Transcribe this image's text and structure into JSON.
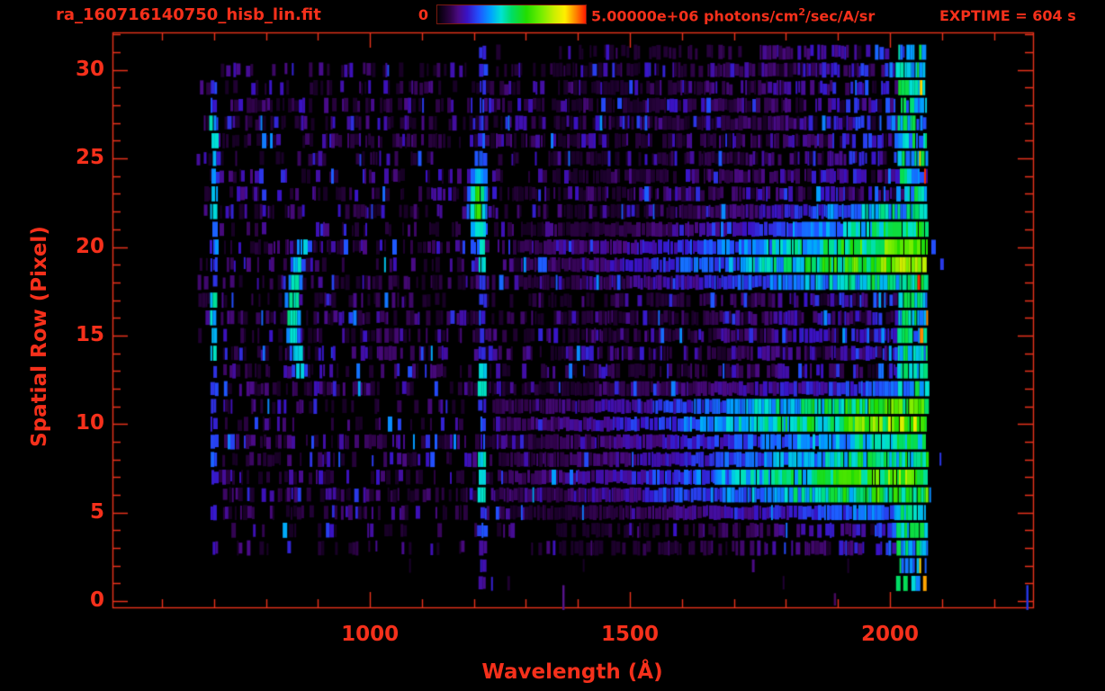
{
  "header": {
    "title": "ra_160716140750_hisb_lin.fit",
    "exptime": "EXPTIME = 604 s",
    "colorbar_min": "0",
    "colorbar_max_prefix": "5.00000e+06 photons/cm",
    "colorbar_max_sup": "2",
    "colorbar_max_suffix": "/sec/A/sr"
  },
  "accent_color": "#f5301b",
  "chart_data": {
    "type": "heatmap",
    "title": "ra_160716140750_hisb_lin.fit",
    "xlabel": "Wavelength (Å)",
    "ylabel": "Spatial Row (Pixel)",
    "x_ticks": [
      1000,
      1500,
      2000
    ],
    "x_minor_tick_step_A": 100,
    "x_axis_range": [
      505,
      2275
    ],
    "y_ticks": [
      0,
      5,
      10,
      15,
      20,
      25,
      30
    ],
    "y_minor_tick_step": 1,
    "y_axis_range": [
      -0.35,
      32.12
    ],
    "grid": false,
    "exptime_s": 604,
    "colorbar": {
      "min": 0,
      "max": 5000000,
      "max_label": "5.00000e+06",
      "units": "photons/cm^2/sec/A/sr",
      "stops": [
        [
          0,
          "#000000"
        ],
        [
          0.04,
          "#140020"
        ],
        [
          0.09,
          "#2e0347"
        ],
        [
          0.14,
          "#4a0a82"
        ],
        [
          0.2,
          "#3912c4"
        ],
        [
          0.28,
          "#2152ff"
        ],
        [
          0.36,
          "#00a2ff"
        ],
        [
          0.43,
          "#00e2d2"
        ],
        [
          0.5,
          "#00dd66"
        ],
        [
          0.6,
          "#22dd00"
        ],
        [
          0.7,
          "#74ee00"
        ],
        [
          0.79,
          "#cdee00"
        ],
        [
          0.86,
          "#ffee00"
        ],
        [
          0.93,
          "#ff8800"
        ],
        [
          1,
          "#ff1c00"
        ]
      ]
    },
    "noise": {
      "left_edge_A": 615,
      "right_edge_A": 2072,
      "blue_ramp_start_A": 1350,
      "background_density": 0.55,
      "sparse_rows_below": 5,
      "empty_rows": [
        0,
        2
      ]
    },
    "features": [
      {
        "name": "airglow-line-700",
        "type": "vertical-line",
        "wavelength_A": 700,
        "half_width_A": 6,
        "rows": [
          2,
          30.5
        ],
        "strength": 0.25,
        "bright_rows": [
          [
            14,
            17
          ],
          [
            22,
            27
          ]
        ],
        "description": "faint blue vertical emission line near left edge"
      },
      {
        "name": "emission-arc-860",
        "type": "arc",
        "center_A": 851,
        "curve_A": 20,
        "center_row": 16.3,
        "rows": [
          12.6,
          20
        ],
        "half_width_A": 14,
        "strength": 0.42,
        "description": "bright blue-cyan curved streak"
      },
      {
        "name": "lyman-alpha-stripe",
        "type": "vertical-line",
        "wavelength_A": 1216,
        "half_width_A": 7,
        "rows": [
          0.6,
          31
        ],
        "strength": 0.25,
        "bright_rows": [
          [
            5.5,
            8.3
          ],
          [
            11.3,
            13.2
          ],
          [
            18.8,
            21
          ]
        ],
        "description": "geocoronal Lyman-alpha column through all rows"
      },
      {
        "name": "lyman-alpha-blob",
        "type": "blob",
        "center_A": 1208,
        "center_row": 22.4,
        "sigma_A": 11,
        "sigma_row": 1.55,
        "rows": [
          20,
          25.4
        ],
        "peak": 0.64,
        "description": "bright green emission knot at rows 21-24"
      },
      {
        "name": "spectrum-band-top",
        "type": "band",
        "rows": [
          17.7,
          20.9
        ],
        "start_A": 1290,
        "peak": 0.55,
        "description": "continuum spectrum, brightens toward long wavelengths"
      },
      {
        "name": "spectrum-band-upper-cyan",
        "type": "band",
        "rows": [
          20.4,
          22.3
        ],
        "start_A": 1600,
        "peak": 0.4,
        "description": "cyan band above top spectrum"
      },
      {
        "name": "spectrum-band-middle",
        "type": "band",
        "rows": [
          8.8,
          11.7
        ],
        "start_A": 1235,
        "peak": 0.58,
        "description": "continuum spectrum rows 9-11"
      },
      {
        "name": "spectrum-band-bottom",
        "type": "band",
        "rows": [
          5.1,
          8.5
        ],
        "start_A": 1245,
        "peak": 0.53,
        "description": "continuum spectrum rows 6-8"
      },
      {
        "name": "faint-streak",
        "type": "diagonal",
        "rows": [
          12.8,
          15.2
        ],
        "start_A": 1345,
        "slope_A_per_row": 55,
        "half_width_A": 30,
        "strength": 0.15,
        "description": "faint blue diagonal streak right of Lyman-alpha"
      },
      {
        "name": "detector-edge-glow",
        "type": "edge",
        "start_A": 2015,
        "end_A": 2072,
        "strength": 0.3,
        "hot_start_A": 2055,
        "description": "bright multicolour column at detector long-wavelength edge with sparse orange-red pixels"
      }
    ],
    "artifacts": [
      {
        "wavelength_A": 1370,
        "rows": [
          -0.5,
          0.9
        ],
        "color": "#55138a"
      },
      {
        "wavelength_A": 1892,
        "rows": [
          -0.25,
          0.45
        ],
        "color": "#47095f"
      },
      {
        "wavelength_A": 2262,
        "rows": [
          -0.5,
          0.9
        ],
        "color": "#2335e0"
      }
    ]
  }
}
